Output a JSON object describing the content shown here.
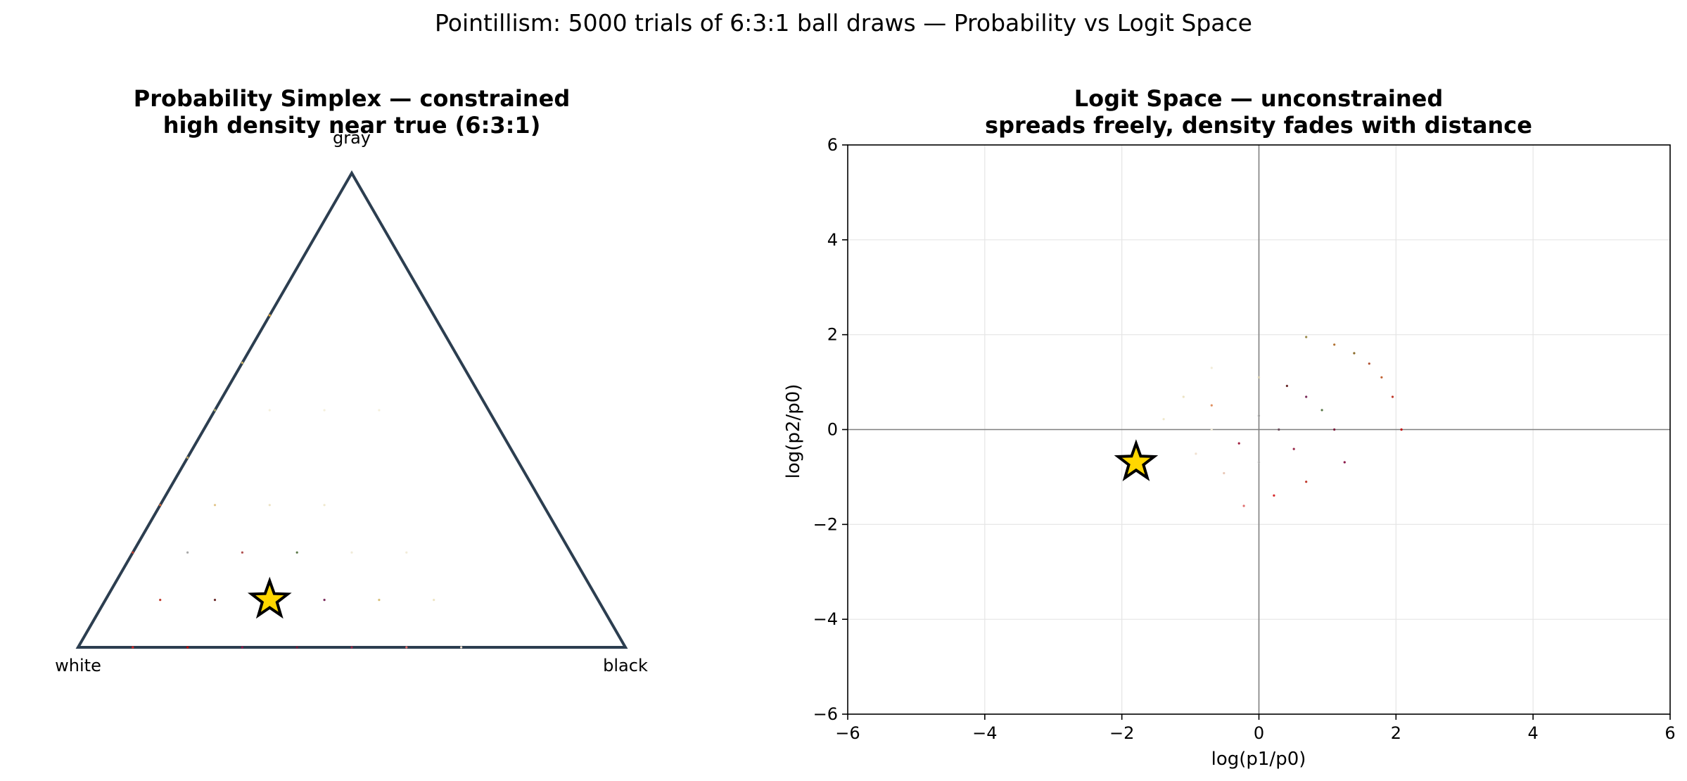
{
  "figure": {
    "suptitle": "Pointillism: 5000 trials of 6:3:1 ball draws — Probability vs Logit Space"
  },
  "chart_data": [
    {
      "type": "scatter",
      "panel": "probability-simplex",
      "title_lines": [
        "Probability Simplex — constrained",
        "high density near true (6:3:1)"
      ],
      "vertex_labels": {
        "bottom_left": "white",
        "bottom_right": "black",
        "top": "gray"
      },
      "colors": {
        "triangle": "#2c3e50",
        "star_fill": "#ffd700",
        "star_edge": "#000000"
      },
      "true_point": {
        "white": 0.6,
        "black": 0.3,
        "gray": 0.1
      },
      "points": [
        {
          "white": 0.5,
          "black": 0.0,
          "gray": 0.5,
          "color": "#f5f0dc"
        },
        {
          "white": 0.4,
          "black": 0.1,
          "gray": 0.5,
          "color": "#f5f0dc"
        },
        {
          "white": 0.3,
          "black": 0.2,
          "gray": 0.5,
          "color": "#f5f0dc"
        },
        {
          "white": 0.2,
          "black": 0.3,
          "gray": 0.5,
          "color": "#f5f0dc"
        },
        {
          "white": 0.6,
          "black": 0.1,
          "gray": 0.3,
          "color": "#e2c58a"
        },
        {
          "white": 0.5,
          "black": 0.2,
          "gray": 0.3,
          "color": "#ece3c4"
        },
        {
          "white": 0.4,
          "black": 0.3,
          "gray": 0.3,
          "color": "#f0e8cd"
        },
        {
          "white": 0.7,
          "black": 0.1,
          "gray": 0.2,
          "color": "#a8a8a8"
        },
        {
          "white": 0.6,
          "black": 0.2,
          "gray": 0.2,
          "color": "#b05050"
        },
        {
          "white": 0.5,
          "black": 0.3,
          "gray": 0.2,
          "color": "#5c7a4a"
        },
        {
          "white": 0.4,
          "black": 0.4,
          "gray": 0.2,
          "color": "#f0ead8"
        },
        {
          "white": 0.3,
          "black": 0.5,
          "gray": 0.2,
          "color": "#f2ecd8"
        },
        {
          "white": 0.8,
          "black": 0.1,
          "gray": 0.1,
          "color": "#c0392b"
        },
        {
          "white": 0.7,
          "black": 0.2,
          "gray": 0.1,
          "color": "#6b2b2b"
        },
        {
          "white": 0.6,
          "black": 0.3,
          "gray": 0.1,
          "color": "#a02040"
        },
        {
          "white": 0.5,
          "black": 0.4,
          "gray": 0.1,
          "color": "#7a2a5a"
        },
        {
          "white": 0.4,
          "black": 0.5,
          "gray": 0.1,
          "color": "#d8c07a"
        },
        {
          "white": 0.3,
          "black": 0.6,
          "gray": 0.1,
          "color": "#ede4c4"
        },
        {
          "white": 0.9,
          "black": 0.1,
          "gray": 0.0,
          "color": "#d62728"
        },
        {
          "white": 0.8,
          "black": 0.2,
          "gray": 0.0,
          "color": "#c00000"
        },
        {
          "white": 0.7,
          "black": 0.3,
          "gray": 0.0,
          "color": "#8b1a4a"
        },
        {
          "white": 0.6,
          "black": 0.4,
          "gray": 0.0,
          "color": "#7a1a3a"
        },
        {
          "white": 0.5,
          "black": 0.5,
          "gray": 0.0,
          "color": "#9a2a4a"
        },
        {
          "white": 0.4,
          "black": 0.6,
          "gray": 0.0,
          "color": "#e07070"
        },
        {
          "white": 0.3,
          "black": 0.7,
          "gray": 0.0,
          "color": "#f0e0d0"
        },
        {
          "white": 0.8,
          "black": 0.0,
          "gray": 0.2,
          "color": "#c0392b"
        },
        {
          "white": 0.7,
          "black": 0.0,
          "gray": 0.3,
          "color": "#d06030"
        },
        {
          "white": 0.6,
          "black": 0.0,
          "gray": 0.4,
          "color": "#b8a060"
        },
        {
          "white": 0.5,
          "black": 0.0,
          "gray": 0.5,
          "color": "#a0a060"
        },
        {
          "white": 0.4,
          "black": 0.0,
          "gray": 0.6,
          "color": "#c8b060"
        },
        {
          "white": 0.3,
          "black": 0.0,
          "gray": 0.7,
          "color": "#e0a030"
        }
      ]
    },
    {
      "type": "scatter",
      "panel": "logit-space",
      "title_lines": [
        "Logit Space — unconstrained",
        "spreads freely, density fades with distance"
      ],
      "xlabel": "log(p1/p0)",
      "ylabel": "log(p2/p0)",
      "xlim": [
        -6,
        6
      ],
      "ylim": [
        -6,
        6
      ],
      "xticks": [
        -6,
        -4,
        -2,
        0,
        2,
        4,
        6
      ],
      "yticks": [
        -6,
        -4,
        -2,
        0,
        2,
        4,
        6
      ],
      "xtick_labels": [
        "−6",
        "−4",
        "−2",
        "0",
        "2",
        "4",
        "6"
      ],
      "ytick_labels": [
        "−6",
        "−4",
        "−2",
        "0",
        "2",
        "4",
        "6"
      ],
      "grid": true,
      "colors": {
        "grid": "#e5e5e5",
        "zero_lines": "#808080",
        "star_fill": "#ffd700",
        "star_edge": "#000000"
      },
      "true_point": {
        "x": -1.7918,
        "y": -0.6931
      },
      "points": [
        {
          "x": 0.69,
          "y": 1.95,
          "color": "#9a8a4a"
        },
        {
          "x": 1.1,
          "y": 1.79,
          "color": "#b07030"
        },
        {
          "x": 1.39,
          "y": 1.61,
          "color": "#8a6a2a"
        },
        {
          "x": 1.61,
          "y": 1.39,
          "color": "#b05030"
        },
        {
          "x": 1.79,
          "y": 1.1,
          "color": "#c06030"
        },
        {
          "x": 1.95,
          "y": 0.69,
          "color": "#c0392b"
        },
        {
          "x": 2.08,
          "y": 0.0,
          "color": "#c00000"
        },
        {
          "x": 0.0,
          "y": 1.1,
          "color": "#d8d0b0"
        },
        {
          "x": 0.41,
          "y": 0.92,
          "color": "#6b2b2b"
        },
        {
          "x": 0.69,
          "y": 0.69,
          "color": "#7a2a5a"
        },
        {
          "x": 0.92,
          "y": 0.41,
          "color": "#5c7a4a"
        },
        {
          "x": 1.1,
          "y": 0.0,
          "color": "#7a1a3a"
        },
        {
          "x": 1.25,
          "y": -0.69,
          "color": "#8b1a4a"
        },
        {
          "x": -0.69,
          "y": 0.51,
          "color": "#e09060"
        },
        {
          "x": 0.0,
          "y": 0.29,
          "color": "#a0a0a0"
        },
        {
          "x": 0.29,
          "y": 0.0,
          "color": "#6a4a5a"
        },
        {
          "x": 0.51,
          "y": -0.41,
          "color": "#9a2a4a"
        },
        {
          "x": 0.69,
          "y": -1.1,
          "color": "#c0392b"
        },
        {
          "x": -0.29,
          "y": -0.29,
          "color": "#a02040"
        },
        {
          "x": 0.0,
          "y": -0.69,
          "color": "#b0b0b0"
        },
        {
          "x": 0.22,
          "y": -1.39,
          "color": "#d62728"
        },
        {
          "x": -0.22,
          "y": -1.61,
          "color": "#e07070"
        },
        {
          "x": -0.51,
          "y": -0.92,
          "color": "#e8c8b8"
        },
        {
          "x": -1.1,
          "y": 0.69,
          "color": "#ece3c4"
        },
        {
          "x": -1.39,
          "y": 0.22,
          "color": "#f0e8cd"
        },
        {
          "x": -0.92,
          "y": -0.51,
          "color": "#f0e0d0"
        },
        {
          "x": -0.69,
          "y": 1.3,
          "color": "#f2ecd8"
        },
        {
          "x": -0.69,
          "y": 0.0,
          "color": "#f0ead8"
        }
      ]
    }
  ]
}
